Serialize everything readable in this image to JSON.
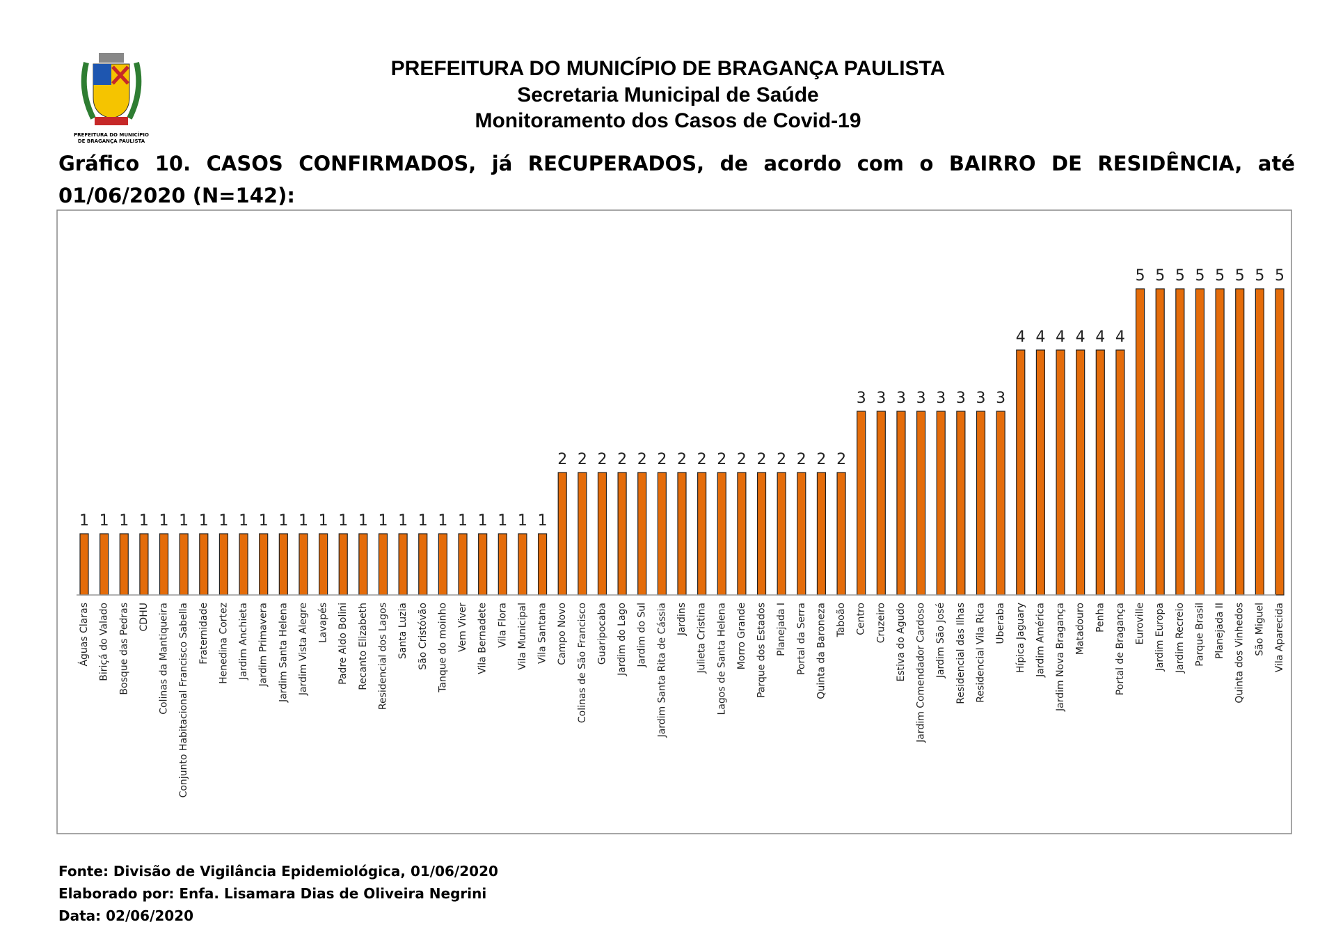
{
  "logo_caption": [
    "PREFEITURA DO MUNICÍPIO",
    "DE BRAGANÇA PAULISTA"
  ],
  "header": {
    "title": "PREFEITURA DO MUNICÍPIO DE BRAGANÇA PAULISTA",
    "subtitle": "Secretaria Municipal de Saúde",
    "subtitle2": "Monitoramento dos Casos de Covid-19"
  },
  "chart_data": {
    "type": "bar",
    "title": "Gráfico 10. CASOS CONFIRMADOS, já RECUPERADOS, de acordo com o BAIRRO DE RESIDÊNCIA, até 01/06/2020 (N=142):",
    "color": "#e46c0a",
    "categories": [
      "Águas Claras",
      "Biriçá do Valado",
      "Bosque das Pedras",
      "CDHU",
      "Colinas da Mantiqueira",
      "Conjunto Habitacional Francisco Sabella",
      "Fraternidade",
      "Henedina Cortez",
      "Jardim Anchieta",
      "Jardim Primavera",
      "Jardim Santa Helena",
      "Jardim Vista Alegre",
      "Lavapés",
      "Padre Aldo Bolini",
      "Recanto Elizabeth",
      "Residencial dos Lagos",
      "Santa Luzia",
      "São Cristóvão",
      "Tanque do moinho",
      "Vem Viver",
      "Vila Bernadete",
      "Vila Flora",
      "Vila Municipal",
      "Vila Santana",
      "Campo Novo",
      "Colinas de São Francisco",
      "Guaripocaba",
      "Jardim do Lago",
      "Jardim do Sul",
      "Jardim Santa Rita de Cássia",
      "Jardins",
      "Julieta Cristina",
      "Lagos de Santa Helena",
      "Morro Grande",
      "Parque dos Estados",
      "Planejada I",
      "Portal da Serra",
      "Quinta da Baroneza",
      "Taboão",
      "Centro",
      "Cruzeiro",
      "Estiva do Agudo",
      "Jardim Comendador Cardoso",
      "Jardim São José",
      "Residencial das Ilhas",
      "Residencial Vila Rica",
      "Uberaba",
      "Hípica Jaguary",
      "Jardim América",
      "Jardim Nova Bragança",
      "Matadouro",
      "Penha",
      "Portal de Bragança",
      "Euroville",
      "Jardim Europa",
      "Jardim Recreio",
      "Parque Brasil",
      "Planejada II",
      "Quinta dos Vinhedos",
      "São Miguel",
      "Vila Aparecida"
    ],
    "values": [
      1,
      1,
      1,
      1,
      1,
      1,
      1,
      1,
      1,
      1,
      1,
      1,
      1,
      1,
      1,
      1,
      1,
      1,
      1,
      1,
      1,
      1,
      1,
      1,
      2,
      2,
      2,
      2,
      2,
      2,
      2,
      2,
      2,
      2,
      2,
      2,
      2,
      2,
      2,
      3,
      3,
      3,
      3,
      3,
      3,
      3,
      3,
      4,
      4,
      4,
      4,
      4,
      4,
      5,
      5,
      5,
      5,
      5,
      5,
      5,
      5
    ]
  },
  "footer": [
    "Fonte: Divisão de Vigilância Epidemiológica, 01/06/2020",
    "Elaborado por: Enfa. Lisamara Dias de Oliveira Negrini",
    "Data: 02/06/2020"
  ]
}
